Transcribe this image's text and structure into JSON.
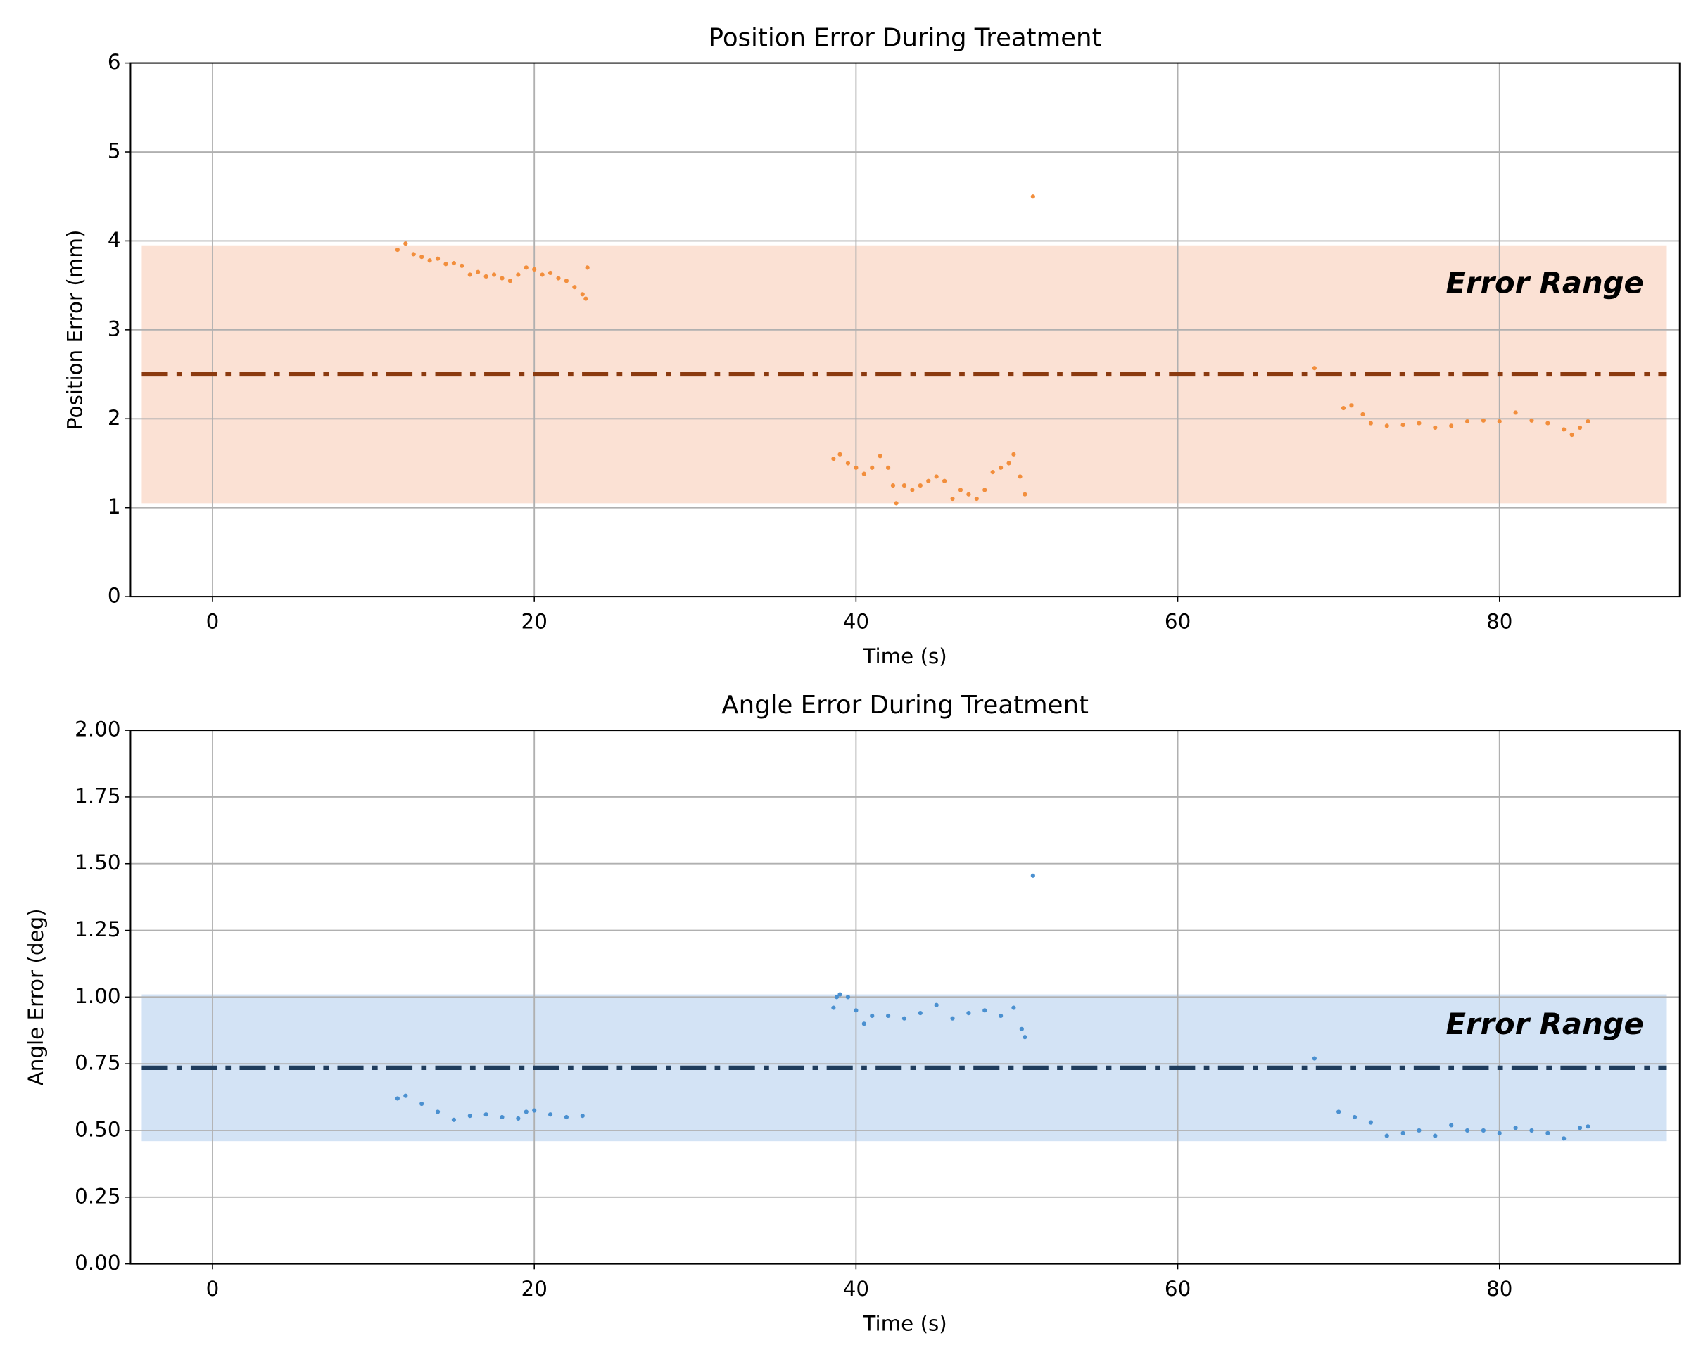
{
  "chart_data": [
    {
      "type": "scatter",
      "title": "Position Error During Treatment",
      "x_label": "Time (s)",
      "y_label": "Position Error (mm)",
      "xlim": [
        -5.1,
        91.2
      ],
      "ylim": [
        0,
        6
      ],
      "xticks": [
        0,
        20,
        40,
        60,
        80
      ],
      "yticks": [
        0,
        1,
        2,
        3,
        4,
        5,
        6
      ],
      "grid": true,
      "band": [
        1.05,
        3.95
      ],
      "band_x": [
        -4.4,
        90.4
      ],
      "band_color": "#fbe1d4",
      "mean": 2.5,
      "mean_color": "#8b3a0f",
      "annotation": "Error Range",
      "annotation_y": 3.5,
      "series": [
        {
          "color": "#f28e3c",
          "x": [
            11.5,
            12,
            12.5,
            13,
            13.5,
            14,
            14.5,
            15,
            15.5,
            16,
            16.5,
            17,
            17.5,
            18,
            18.5,
            19,
            19.5,
            20,
            20.5,
            21,
            21.5,
            22,
            22.5,
            23,
            23.2,
            23.3,
            38.6,
            39,
            39.5,
            40,
            40.5,
            41,
            41.5,
            42,
            42.3,
            42.5,
            43,
            43.5,
            44,
            44.5,
            45,
            45.5,
            46,
            46.5,
            47,
            47.5,
            48,
            48.5,
            49,
            49.5,
            49.8,
            50.2,
            50.5,
            51,
            68.5,
            70.3,
            70.8,
            71.5,
            72,
            73,
            74,
            75,
            76,
            77,
            78,
            79,
            80,
            81,
            82,
            83,
            84,
            84.5,
            85,
            85.5
          ],
          "values": [
            3.9,
            3.97,
            3.85,
            3.82,
            3.78,
            3.8,
            3.74,
            3.75,
            3.72,
            3.62,
            3.65,
            3.6,
            3.62,
            3.58,
            3.55,
            3.62,
            3.7,
            3.68,
            3.62,
            3.64,
            3.58,
            3.55,
            3.48,
            3.4,
            3.35,
            3.7,
            1.55,
            1.6,
            1.5,
            1.45,
            1.38,
            1.45,
            1.58,
            1.45,
            1.25,
            1.05,
            1.25,
            1.2,
            1.25,
            1.3,
            1.35,
            1.3,
            1.1,
            1.2,
            1.15,
            1.1,
            1.2,
            1.4,
            1.45,
            1.5,
            1.6,
            1.35,
            1.15,
            4.5,
            2.57,
            2.12,
            2.15,
            2.05,
            1.95,
            1.92,
            1.93,
            1.95,
            1.9,
            1.92,
            1.97,
            1.98,
            1.97,
            2.07,
            1.98,
            1.95,
            1.88,
            1.82,
            1.9,
            1.97
          ]
        }
      ]
    },
    {
      "type": "scatter",
      "title": "Angle Error During Treatment",
      "x_label": "Time (s)",
      "y_label": "Angle Error (deg)",
      "xlim": [
        -5.1,
        91.2
      ],
      "ylim": [
        0,
        2
      ],
      "xticks": [
        0,
        20,
        40,
        60,
        80
      ],
      "yticks": [
        {
          "value": 0,
          "label": "0.00"
        },
        0.25,
        {
          "value": 0.5,
          "label": "0.50"
        },
        0.75,
        {
          "value": 1,
          "label": "1.00"
        },
        1.25,
        {
          "value": 1.5,
          "label": "1.50"
        },
        1.75,
        {
          "value": 2,
          "label": "2.00"
        }
      ],
      "grid": true,
      "band": [
        0.46,
        1.01
      ],
      "band_x": [
        -4.4,
        90.4
      ],
      "band_color": "#d3e3f5",
      "mean": 0.735,
      "mean_color": "#1f3c5c",
      "annotation": "Error Range",
      "annotation_y": 0.89,
      "series": [
        {
          "color": "#4a90d0",
          "x": [
            11.5,
            12,
            13,
            14,
            15,
            16,
            17,
            18,
            19,
            19.5,
            20,
            21,
            22,
            23,
            38.6,
            38.8,
            39,
            39.5,
            40,
            40.5,
            41,
            42,
            43,
            44,
            45,
            46,
            47,
            48,
            49,
            49.8,
            50.3,
            50.5,
            51,
            68.5,
            70,
            71,
            72,
            73,
            74,
            75,
            76,
            77,
            78,
            79,
            80,
            81,
            82,
            83,
            84,
            85,
            85.5
          ],
          "values": [
            0.62,
            0.63,
            0.6,
            0.57,
            0.54,
            0.555,
            0.56,
            0.55,
            0.545,
            0.57,
            0.575,
            0.56,
            0.55,
            0.555,
            0.96,
            1.0,
            1.01,
            1.0,
            0.95,
            0.9,
            0.93,
            0.93,
            0.92,
            0.94,
            0.97,
            0.92,
            0.94,
            0.95,
            0.93,
            0.96,
            0.88,
            0.85,
            1.455,
            0.77,
            0.57,
            0.55,
            0.53,
            0.48,
            0.49,
            0.5,
            0.48,
            0.52,
            0.5,
            0.5,
            0.49,
            0.51,
            0.5,
            0.49,
            0.47,
            0.51,
            0.515
          ]
        }
      ]
    }
  ]
}
